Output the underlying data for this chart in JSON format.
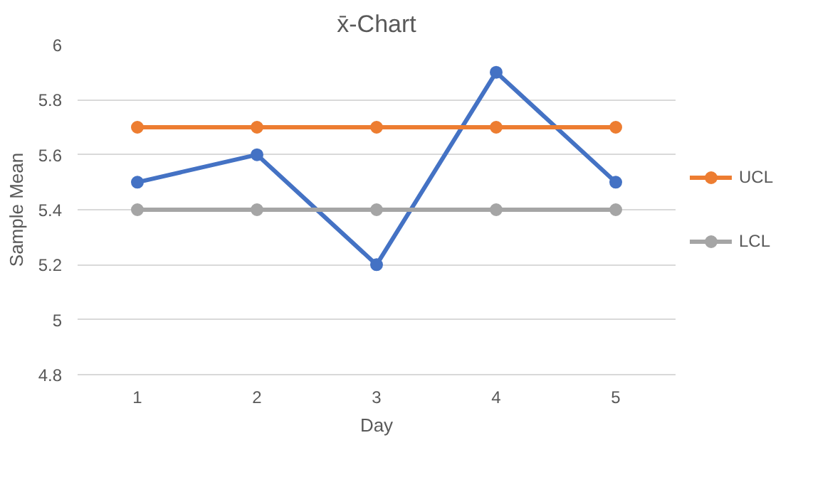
{
  "chart_data": {
    "type": "line",
    "title": "x̄-Chart",
    "xlabel": "Day",
    "ylabel": "Sample Mean",
    "categories": [
      "1",
      "2",
      "3",
      "4",
      "5"
    ],
    "series": [
      {
        "color": "#4472c4",
        "values": [
          5.5,
          5.6,
          5.2,
          5.9,
          5.5
        ]
      },
      {
        "name": "UCL",
        "color": "#ed7d31",
        "values": [
          5.7,
          5.7,
          5.7,
          5.7,
          5.7
        ]
      },
      {
        "name": "LCL",
        "color": "#a5a5a5",
        "values": [
          5.4,
          5.4,
          5.4,
          5.4,
          5.4
        ]
      }
    ],
    "ylim": [
      4.8,
      6
    ],
    "yticks": [
      4.8,
      5,
      5.2,
      5.4,
      5.6,
      5.8,
      6
    ],
    "grid": "y",
    "legend": "right",
    "marker": "circle",
    "line_style": "solid"
  }
}
